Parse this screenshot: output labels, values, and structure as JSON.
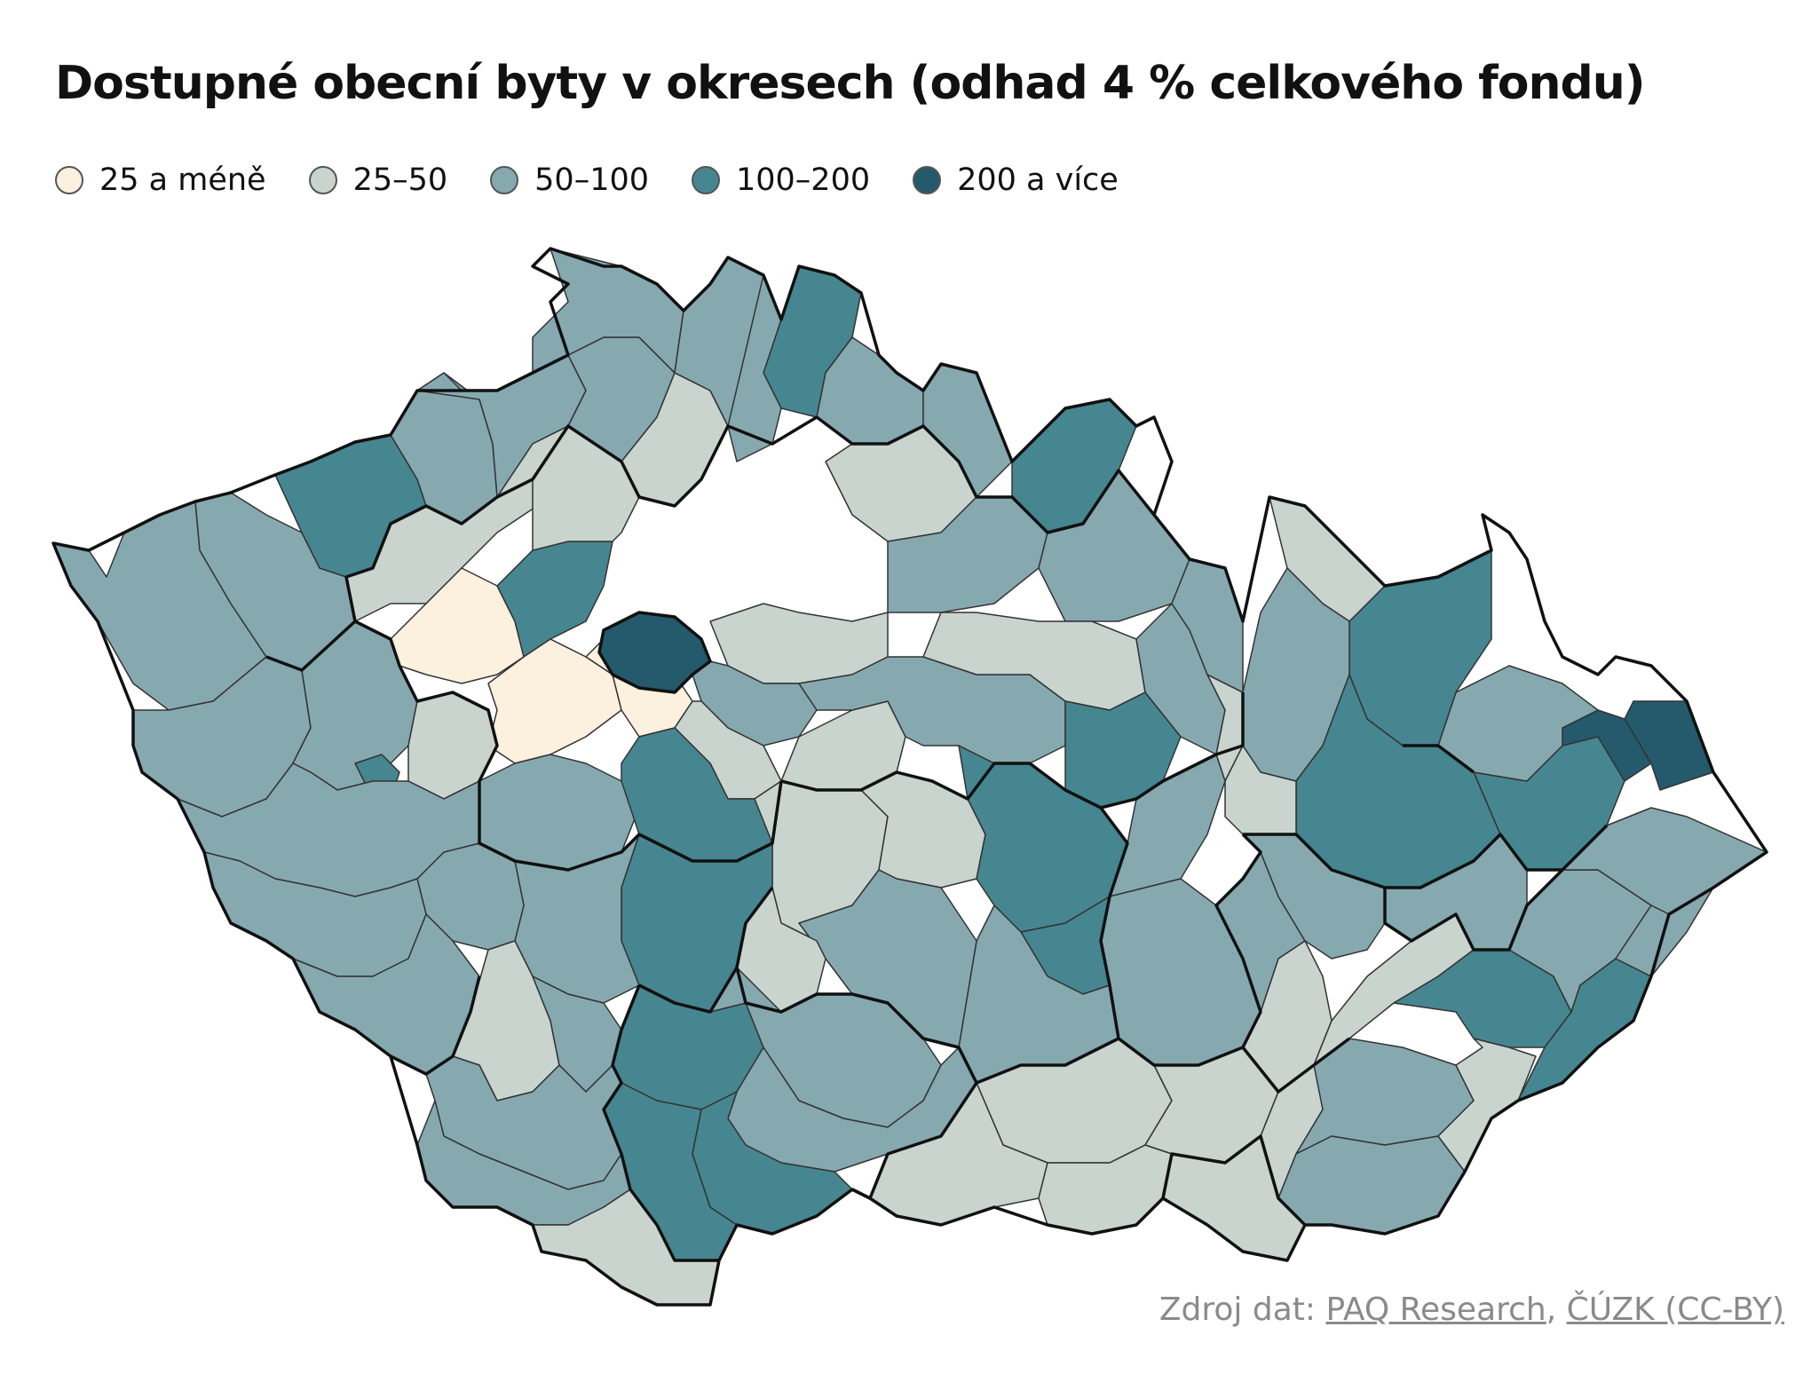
{
  "title": "Dostupné obecní byty v okresech (odhad 4 % celkového fondu)",
  "legend": [
    {
      "label": "25 a méně",
      "color": "#fcf0de"
    },
    {
      "label": "25–50",
      "color": "#c8d4cd"
    },
    {
      "label": "50–100",
      "color": "#86a9b0"
    },
    {
      "label": "100–200",
      "color": "#468690"
    },
    {
      "label": "200 a více",
      "color": "#255a6c"
    }
  ],
  "source": {
    "prefix": "Zdroj dat: ",
    "link1": "PAQ Research",
    "separator": ", ",
    "link2": "ČÚZK (CC-BY)"
  },
  "colors": {
    "border": "#111111",
    "district_border": "#333333"
  }
}
